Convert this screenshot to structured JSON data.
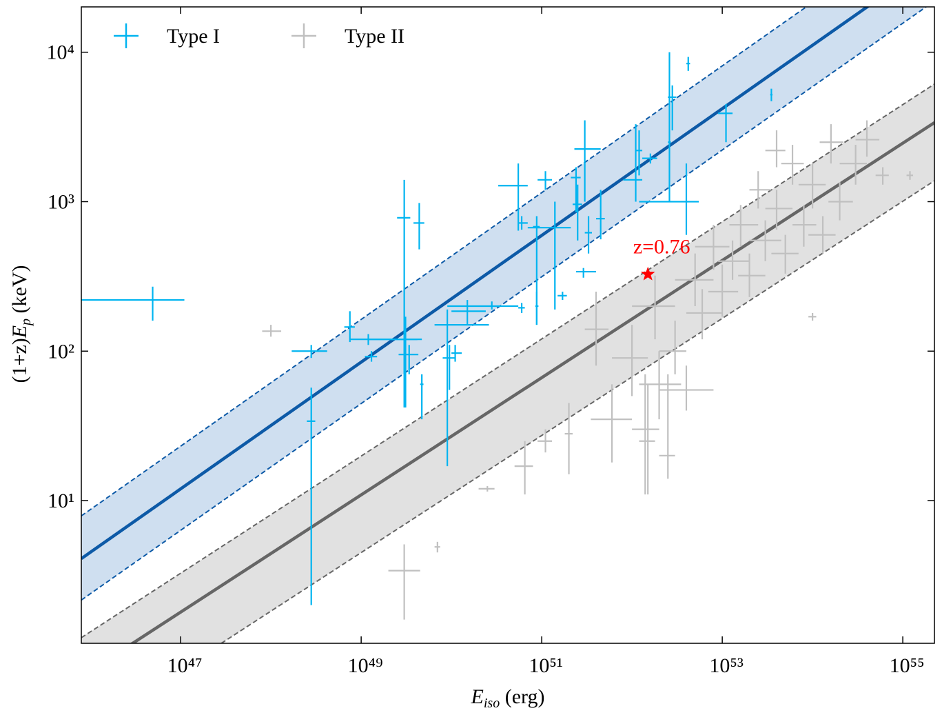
{
  "chart_data": {
    "type": "scatter",
    "xlabel": [
      "E",
      "iso",
      " (erg)"
    ],
    "ylabel": [
      "(1+z)",
      "E",
      "p",
      " (keV)"
    ],
    "log_x": true,
    "log_y": true,
    "xlim": [
      7.94e+45,
      2.24e+55
    ],
    "ylim": [
      1.11,
      20100
    ],
    "xticks": [
      {
        "value": 1e+47,
        "label": "10⁴⁷"
      },
      {
        "value": 1e+49,
        "label": "10⁴⁹"
      },
      {
        "value": 1e+51,
        "label": "10⁵¹"
      },
      {
        "value": 1e+53,
        "label": "10⁵³"
      },
      {
        "value": 1e+55,
        "label": "10⁵⁵"
      }
    ],
    "yticks": [
      {
        "value": 10,
        "label": "10¹"
      },
      {
        "value": 100,
        "label": "10²"
      },
      {
        "value": 1000,
        "label": "10³"
      },
      {
        "value": 10000,
        "label": "10⁴"
      }
    ],
    "legend": "upper left",
    "lines": [
      {
        "color": "#0d5aa7",
        "band_color": "#cfdff0",
        "x": [
          7.94e+45,
          2.24e+55
        ],
        "center": [
          4.09,
          41600
        ],
        "lower": [
          2.16,
          22000
        ],
        "upper": [
          7.9,
          80400
        ]
      },
      {
        "color": "#666666",
        "band_color": "#e1e1e1",
        "x": [
          7.94e+45,
          2.24e+55
        ],
        "center": [
          0.664,
          3380
        ],
        "lower": [
          0.274,
          1380
        ],
        "upper": [
          1.21,
          6120
        ]
      }
    ],
    "series": [
      {
        "name": "Type II",
        "color": "#c0c0c0",
        "x": [
          1e+48,
          3e+49,
          7e+49,
          2.5e+50,
          6.5e+50,
          1.1e+51,
          2e+51,
          4e+51,
          6e+51,
          1e+52,
          1.4e+52,
          2e+52,
          1.8e+52,
          3e+52,
          4e+52,
          5e+52,
          6e+52,
          8e+52,
          1e+53,
          1.3e+53,
          1.6e+53,
          2e+53,
          2.5e+53,
          3e+53,
          4e+53,
          5e+53,
          6e+53,
          8e+53,
          1e+54,
          1.3e+54,
          1.6e+54,
          2e+54,
          3e+54,
          4e+54,
          6e+54,
          1.2e+55,
          1.5e+52,
          2.5e+52,
          1e+54,
          4e+53
        ],
        "values": [
          136,
          3.4,
          4.9,
          12,
          17,
          25,
          28,
          140,
          35,
          90,
          30,
          60,
          200,
          100,
          55,
          300,
          180,
          500,
          250,
          400,
          700,
          320,
          1200,
          550,
          900,
          450,
          1800,
          700,
          1300,
          600,
          2500,
          1000,
          1800,
          2600,
          1500,
          1500,
          25,
          20,
          170,
          2200
        ],
        "x_low": [
          8e+47,
          2e+49,
          6.5e+49,
          2e+50,
          5e+50,
          9e+50,
          1.8e+51,
          3e+51,
          3.5e+51,
          6e+51,
          1e+52,
          1.2e+52,
          1e+52,
          2e+52,
          2e+52,
          3e+52,
          4e+52,
          5e+52,
          7e+52,
          9e+52,
          1.2e+53,
          1.5e+53,
          2e+53,
          2e+53,
          3e+53,
          3.5e+53,
          4.5e+53,
          6e+53,
          7e+53,
          9e+53,
          1.2e+54,
          1.5e+54,
          2e+54,
          3e+54,
          5e+54,
          1.1e+55,
          1.2e+52,
          2e+52,
          9e+53,
          3e+53
        ],
        "x_high": [
          1.3e+48,
          4.5e+49,
          7.5e+49,
          3e+50,
          8e+50,
          1.3e+51,
          2.2e+51,
          5.5e+51,
          1e+52,
          1.5e+52,
          2e+52,
          3.5e+52,
          3e+52,
          4e+52,
          8e+52,
          8e+52,
          1e+53,
          1.2e+53,
          1.5e+53,
          2e+53,
          2.5e+53,
          3e+53,
          3.5e+53,
          4.5e+53,
          6e+53,
          7e+53,
          8e+53,
          1.1e+54,
          1.4e+54,
          1.8e+54,
          2.2e+54,
          2.8e+54,
          4e+54,
          5.5e+54,
          7e+54,
          1.3e+55,
          1.8e+52,
          3e+52,
          1.1e+54,
          5e+53
        ],
        "y_low": [
          125,
          1.6,
          4.5,
          11.5,
          11,
          21,
          15,
          80,
          18,
          50,
          11,
          35,
          120,
          70,
          40,
          200,
          120,
          350,
          170,
          300,
          500,
          230,
          900,
          400,
          650,
          330,
          1300,
          500,
          900,
          450,
          1800,
          750,
          1300,
          2000,
          1300,
          1400,
          11,
          14,
          160,
          1700
        ],
        "y_high": [
          150,
          5.1,
          5.3,
          12.5,
          25,
          30,
          45,
          250,
          60,
          150,
          70,
          100,
          320,
          160,
          80,
          450,
          260,
          700,
          380,
          550,
          950,
          450,
          1600,
          750,
          1200,
          600,
          2400,
          950,
          1800,
          800,
          3300,
          1350,
          2400,
          3500,
          1700,
          1600,
          60,
          70,
          180,
          3000
        ]
      },
      {
        "name": "Type I",
        "color": "#00b4f0",
        "x": [
          4.9e+46,
          2.8e+48,
          2.8e+48,
          7.5e+48,
          1.2e+49,
          1.3e+49,
          3e+49,
          3.1e+49,
          3.4e+49,
          4.4e+49,
          4.7e+49,
          9e+49,
          9.5e+49,
          1.1e+50,
          2.8e+50,
          1.5e+50,
          6e+50,
          5.5e+50,
          6e+50,
          8.8e+50,
          8.8e+50,
          1.1e+51,
          1.4e+51,
          1.7e+51,
          2.4e+51,
          2.5e+51,
          3e+51,
          2.9e+51,
          3.3e+51,
          4.5e+51,
          1.1e+52,
          1.2e+52,
          1.6e+52,
          2.6e+52,
          2.8e+52,
          4e+52,
          4.2e+52,
          1.1e+53,
          3.5e+53
        ],
        "values": [
          220,
          100,
          34,
          145,
          120,
          92,
          780,
          120,
          95,
          720,
          60,
          150,
          90,
          97,
          200,
          185,
          195,
          1280,
          720,
          680,
          200,
          1400,
          670,
          235,
          1450,
          960,
          2250,
          340,
          620,
          770,
          1400,
          2200,
          1950,
          2500,
          5000,
          1000,
          8400,
          3900,
          5200
        ],
        "x_low": [
          7.9e+45,
          1.7e+48,
          2.5e+48,
          6.5e+48,
          7.5e+48,
          1.1e+49,
          2.5e+49,
          1.2e+49,
          2.6e+49,
          3.8e+49,
          4.5e+49,
          6.5e+49,
          8e+49,
          1e+50,
          9e+49,
          1e+50,
          5.5e+50,
          3.3e+50,
          5.5e+50,
          8e+50,
          8.5e+50,
          9e+50,
          7e+50,
          1.5e+51,
          2.1e+51,
          2.2e+51,
          2.3e+51,
          2.4e+51,
          3e+51,
          4e+51,
          8e+51,
          1.1e+52,
          1.3e+52,
          2.5e+52,
          2.5e+52,
          1.2e+52,
          4e+52,
          9e+52,
          3.4e+53
        ],
        "x_high": [
          1.1e+47,
          4.2e+48,
          3.1e+48,
          8.5e+48,
          4.2e+49,
          1.5e+49,
          3.5e+49,
          4.7e+49,
          4.3e+49,
          5e+49,
          4.9e+49,
          2.6e+50,
          1.1e+50,
          1.3e+50,
          5.5e+50,
          2.4e+50,
          6.5e+50,
          7e+50,
          7e+50,
          9.5e+50,
          9.2e+50,
          1.3e+51,
          2.1e+51,
          1.9e+51,
          2.7e+51,
          2.8e+51,
          4.5e+51,
          4e+51,
          3.6e+51,
          5e+51,
          1.3e+52,
          1.3e+52,
          1.9e+52,
          2.7e+52,
          3.1e+52,
          5.5e+52,
          4.4e+52,
          1.3e+53,
          3.6e+53
        ],
        "y_low": [
          160,
          90,
          2,
          115,
          110,
          85,
          42,
          42,
          70,
          480,
          35,
          17,
          55,
          85,
          190,
          150,
          180,
          640,
          650,
          150,
          150,
          1200,
          190,
          220,
          850,
          550,
          1000,
          310,
          450,
          560,
          1000,
          1500,
          1800,
          1000,
          3000,
          600,
          7500,
          2500,
          4700
        ],
        "y_high": [
          270,
          110,
          57,
          185,
          130,
          100,
          1400,
          170,
          110,
          980,
          70,
          190,
          110,
          110,
          215,
          220,
          210,
          1800,
          800,
          800,
          250,
          1600,
          1000,
          250,
          1700,
          1300,
          3500,
          360,
          800,
          1200,
          3300,
          3000,
          2100,
          10000,
          6000,
          1800,
          9300,
          4500,
          5700
        ]
      }
    ],
    "annotation": {
      "text": "z=0.76",
      "x": 1.5e+52,
      "y": 327,
      "color": "#ff0000"
    }
  }
}
